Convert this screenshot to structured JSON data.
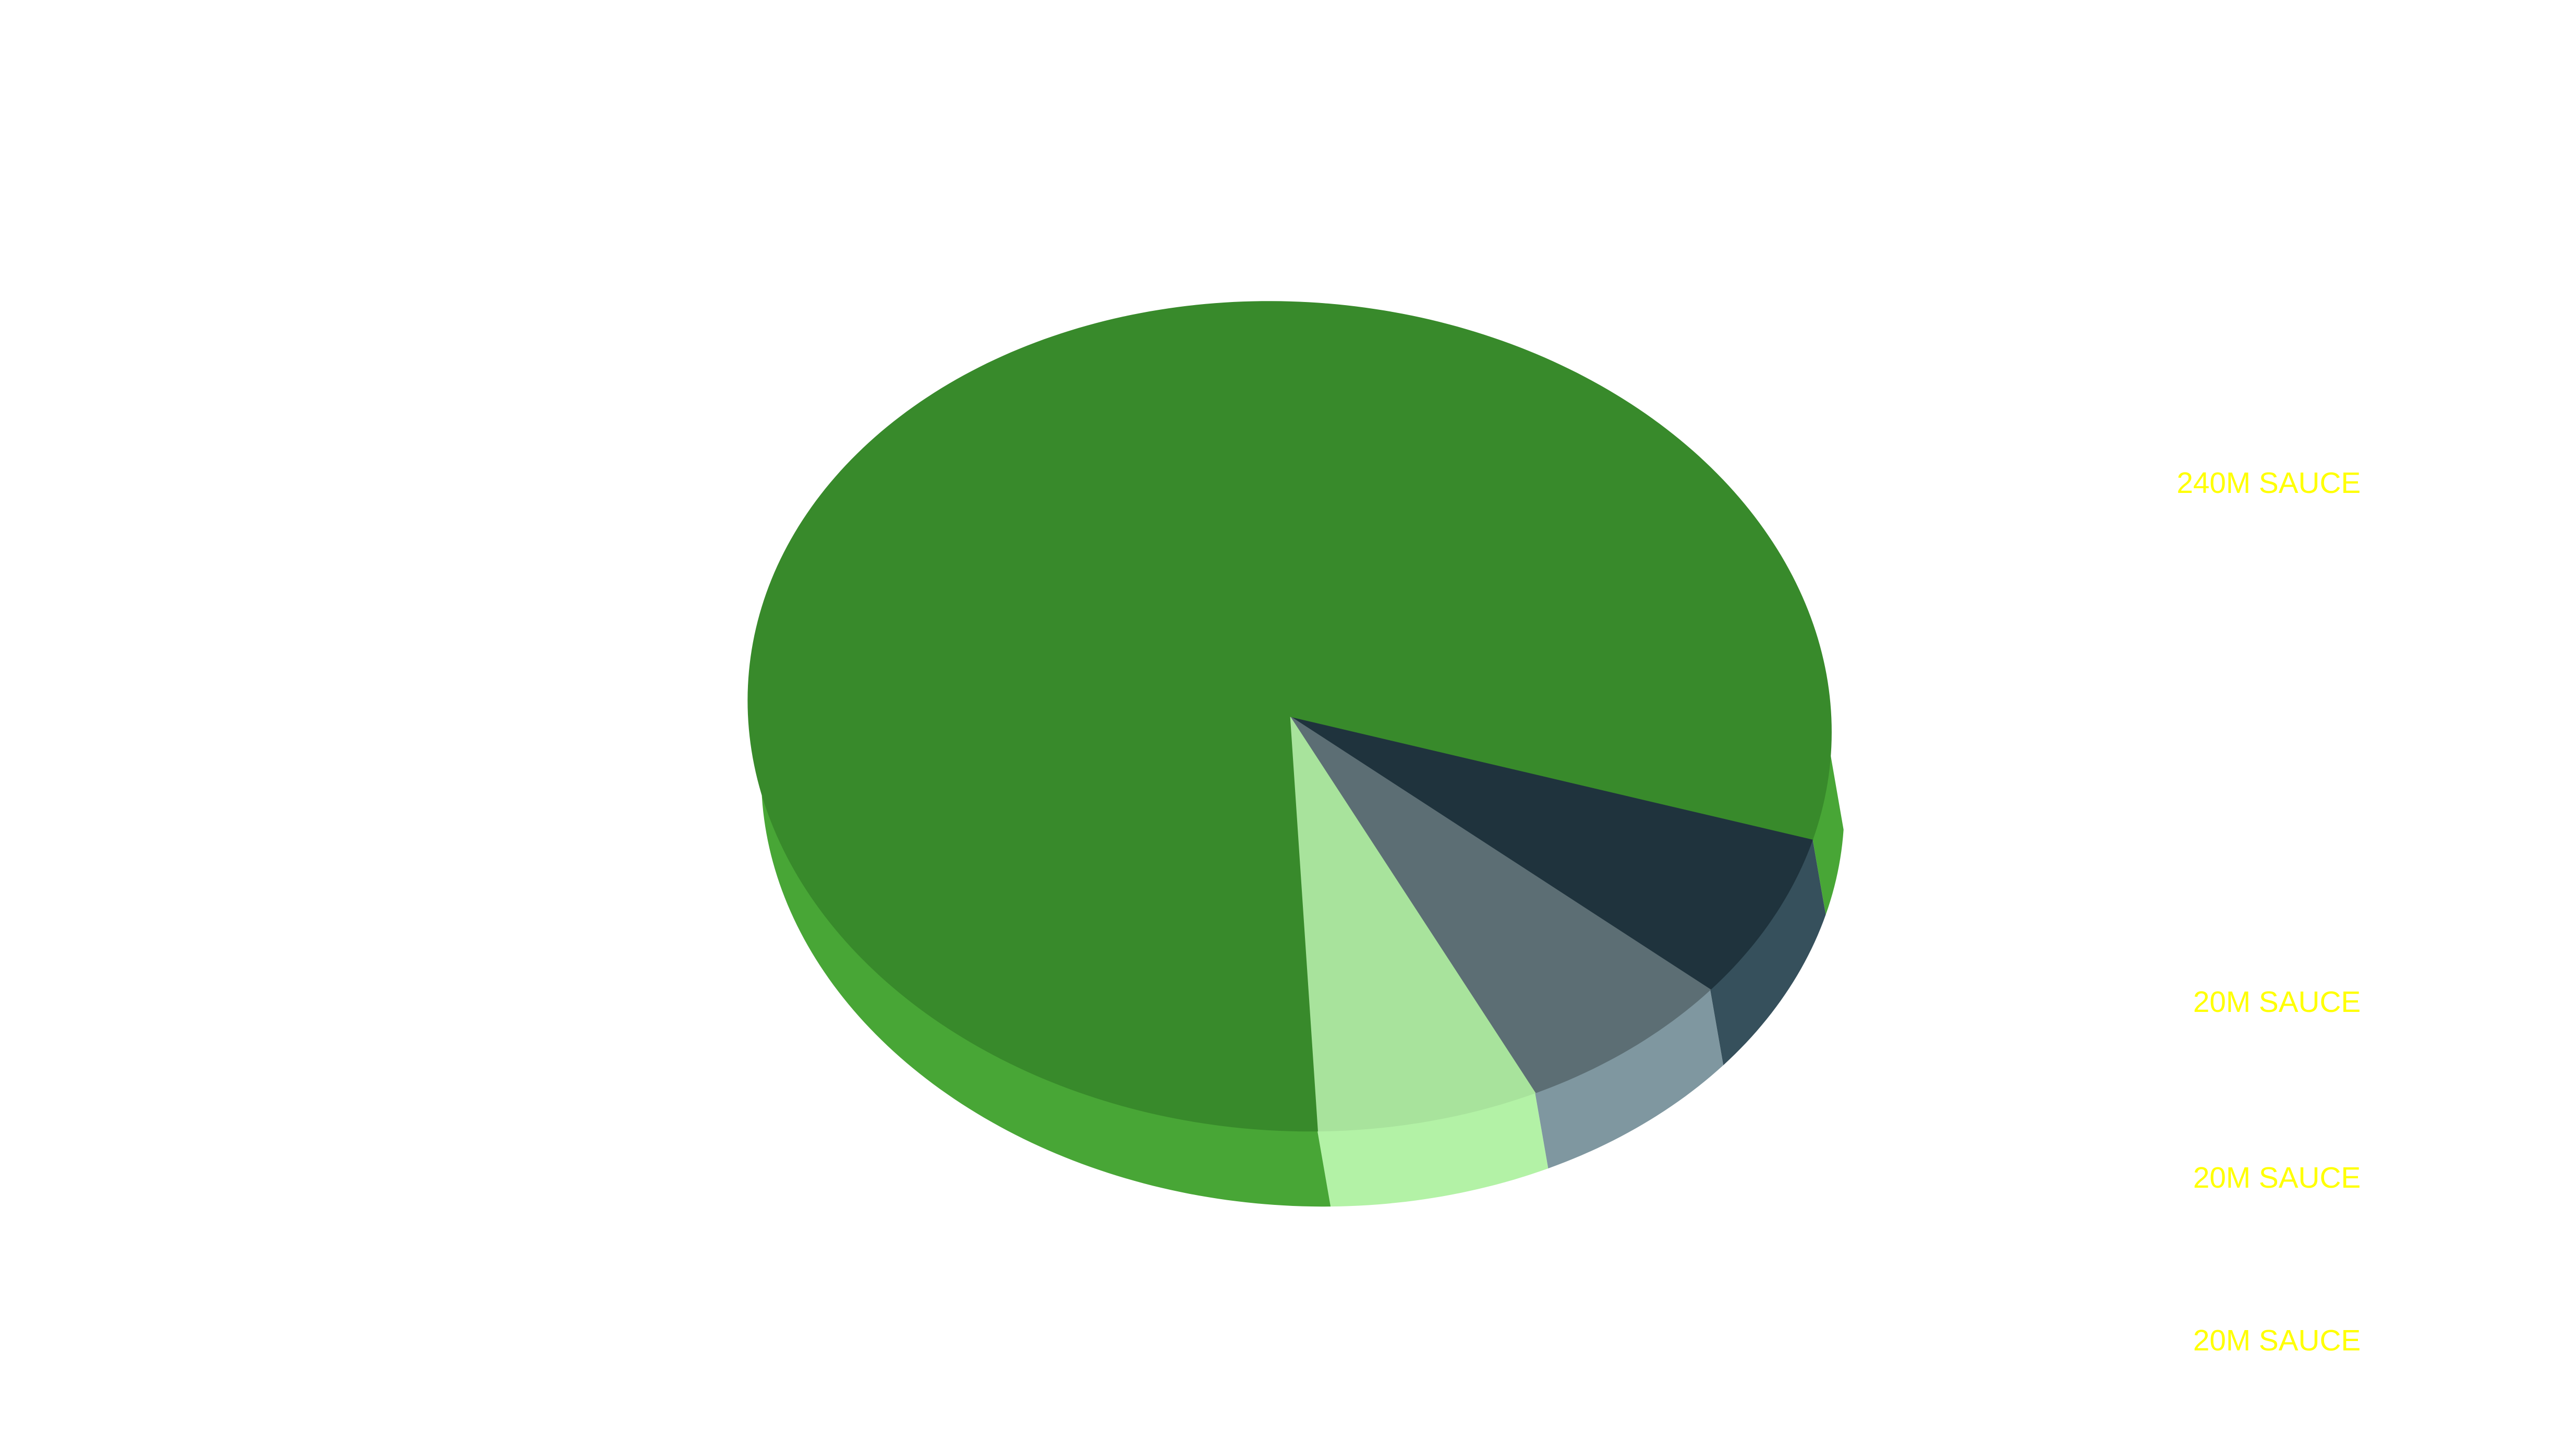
{
  "chart_data": {
    "type": "pie",
    "style": "3d",
    "title": "",
    "slices": [
      {
        "label": "240M SAUCE",
        "value": 240,
        "color": "#388a2b",
        "side_color": "#48a636"
      },
      {
        "label": "20M SAUCE",
        "value": 20,
        "color": "#1f333d",
        "side_color": "#36505c"
      },
      {
        "label": "20M SAUCE",
        "value": 20,
        "color": "#5c6e74",
        "side_color": "#7f97a0"
      },
      {
        "label": "20M SAUCE",
        "value": 20,
        "color": "#a8e39c",
        "side_color": "#b3f2a6"
      }
    ],
    "legend_placement": "right",
    "label_color": "#ffff00"
  }
}
